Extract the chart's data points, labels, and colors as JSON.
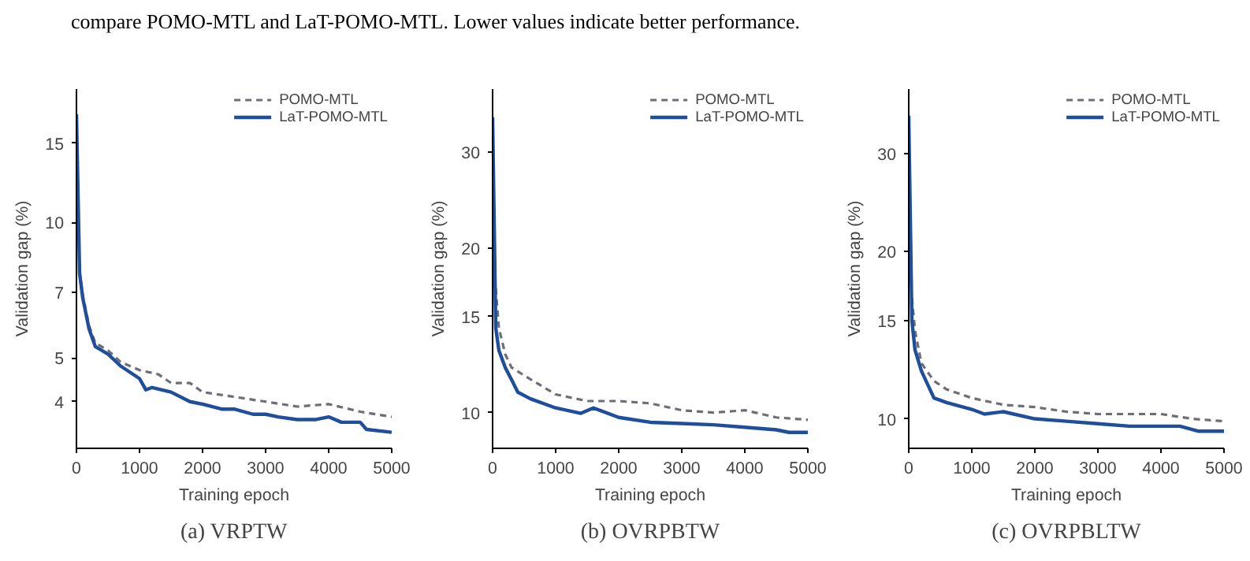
{
  "chart_data": [
    {
      "type": "line",
      "title": "(a) VRPTW",
      "xlabel": "Training epoch",
      "ylabel": "Validation gap (%)",
      "annotations": [
        "compare POMO-MTL and LaT-POMO-MTL. Lower values indicate better performance."
      ],
      "log": "y",
      "legend": "top right",
      "xlim": [
        0,
        5000
      ],
      "ylim": [
        3.15,
        19.8
      ],
      "xticks": [
        0,
        1000,
        2000,
        3000,
        4000,
        5000
      ],
      "yticks": [
        4,
        5,
        7,
        10,
        15
      ],
      "series": [
        {
          "name": "POMO-MTL",
          "color": "#6e6e78",
          "line_style": "dashed",
          "x": [
            50,
            100,
            200,
            300,
            400,
            500,
            700,
            1000,
            1300,
            1500,
            1800,
            2000,
            2500,
            3000,
            3500,
            4000,
            4500,
            5000
          ],
          "values": [
            7.8,
            6.9,
            5.9,
            5.4,
            5.3,
            5.2,
            4.9,
            4.7,
            4.6,
            4.4,
            4.4,
            4.2,
            4.1,
            4.0,
            3.9,
            3.95,
            3.8,
            3.7
          ]
        },
        {
          "name": "LaT-POMO-MTL",
          "color": "#1f4e9c",
          "line_style": "solid",
          "x": [
            0,
            50,
            100,
            200,
            300,
            500,
            700,
            1000,
            1100,
            1200,
            1500,
            1800,
            2000,
            2300,
            2500,
            2800,
            3000,
            3200,
            3500,
            3800,
            4000,
            4200,
            4500,
            4600,
            5000
          ],
          "values": [
            17.4,
            7.7,
            6.8,
            5.8,
            5.3,
            5.1,
            4.8,
            4.5,
            4.25,
            4.3,
            4.2,
            4.0,
            3.95,
            3.85,
            3.85,
            3.75,
            3.75,
            3.7,
            3.65,
            3.65,
            3.7,
            3.6,
            3.6,
            3.47,
            3.42
          ]
        }
      ]
    },
    {
      "type": "line",
      "title": "(b) OVRPBTW",
      "xlabel": "Training epoch",
      "ylabel": "Validation gap (%)",
      "log": "y",
      "legend": "top right",
      "xlim": [
        0,
        5000
      ],
      "ylim": [
        8.6,
        39.2
      ],
      "xticks": [
        0,
        1000,
        2000,
        3000,
        4000,
        5000
      ],
      "yticks": [
        10,
        15,
        20,
        30
      ],
      "series": [
        {
          "name": "POMO-MTL",
          "color": "#6e6e78",
          "line_style": "dashed",
          "x": [
            50,
            100,
            200,
            300,
            500,
            1000,
            1500,
            2000,
            2500,
            3000,
            3500,
            4000,
            4500,
            5000
          ],
          "values": [
            16.9,
            14.3,
            12.8,
            12.1,
            11.7,
            10.8,
            10.5,
            10.5,
            10.4,
            10.1,
            10.0,
            10.1,
            9.8,
            9.7
          ]
        },
        {
          "name": "LaT-POMO-MTL",
          "color": "#1f4e9c",
          "line_style": "solid",
          "x": [
            0,
            50,
            100,
            200,
            300,
            400,
            600,
            1000,
            1400,
            1600,
            2000,
            2500,
            3000,
            3500,
            4000,
            4500,
            4700,
            5000
          ],
          "values": [
            34.8,
            14.3,
            13.0,
            12.1,
            11.5,
            10.9,
            10.6,
            10.2,
            9.97,
            10.2,
            9.8,
            9.6,
            9.55,
            9.5,
            9.4,
            9.3,
            9.2,
            9.2
          ]
        }
      ]
    },
    {
      "type": "line",
      "title": "(c) OVRPBLTW",
      "xlabel": "Training epoch",
      "ylabel": "Validation gap (%)",
      "log": "y",
      "legend": "top right",
      "xlim": [
        0,
        5000
      ],
      "ylim": [
        8.85,
        39.2
      ],
      "xticks": [
        0,
        1000,
        2000,
        3000,
        4000,
        5000
      ],
      "yticks": [
        10,
        15,
        20,
        30
      ],
      "series": [
        {
          "name": "POMO-MTL",
          "color": "#6e6e78",
          "line_style": "dashed",
          "x": [
            50,
            100,
            200,
            400,
            600,
            1000,
            1500,
            2000,
            2500,
            3000,
            3500,
            4000,
            4500,
            5000
          ],
          "values": [
            16.5,
            14.4,
            12.6,
            11.7,
            11.3,
            10.9,
            10.6,
            10.5,
            10.3,
            10.2,
            10.2,
            10.2,
            10.0,
            9.9
          ]
        },
        {
          "name": "LaT-POMO-MTL",
          "color": "#1f4e9c",
          "line_style": "solid",
          "x": [
            0,
            50,
            100,
            200,
            400,
            600,
            1000,
            1200,
            1500,
            2000,
            2500,
            3000,
            3500,
            4000,
            4300,
            4600,
            5000
          ],
          "values": [
            35.1,
            15.0,
            13.3,
            12.2,
            10.9,
            10.7,
            10.4,
            10.2,
            10.3,
            10.0,
            9.9,
            9.8,
            9.7,
            9.7,
            9.7,
            9.5,
            9.5
          ]
        }
      ]
    }
  ]
}
